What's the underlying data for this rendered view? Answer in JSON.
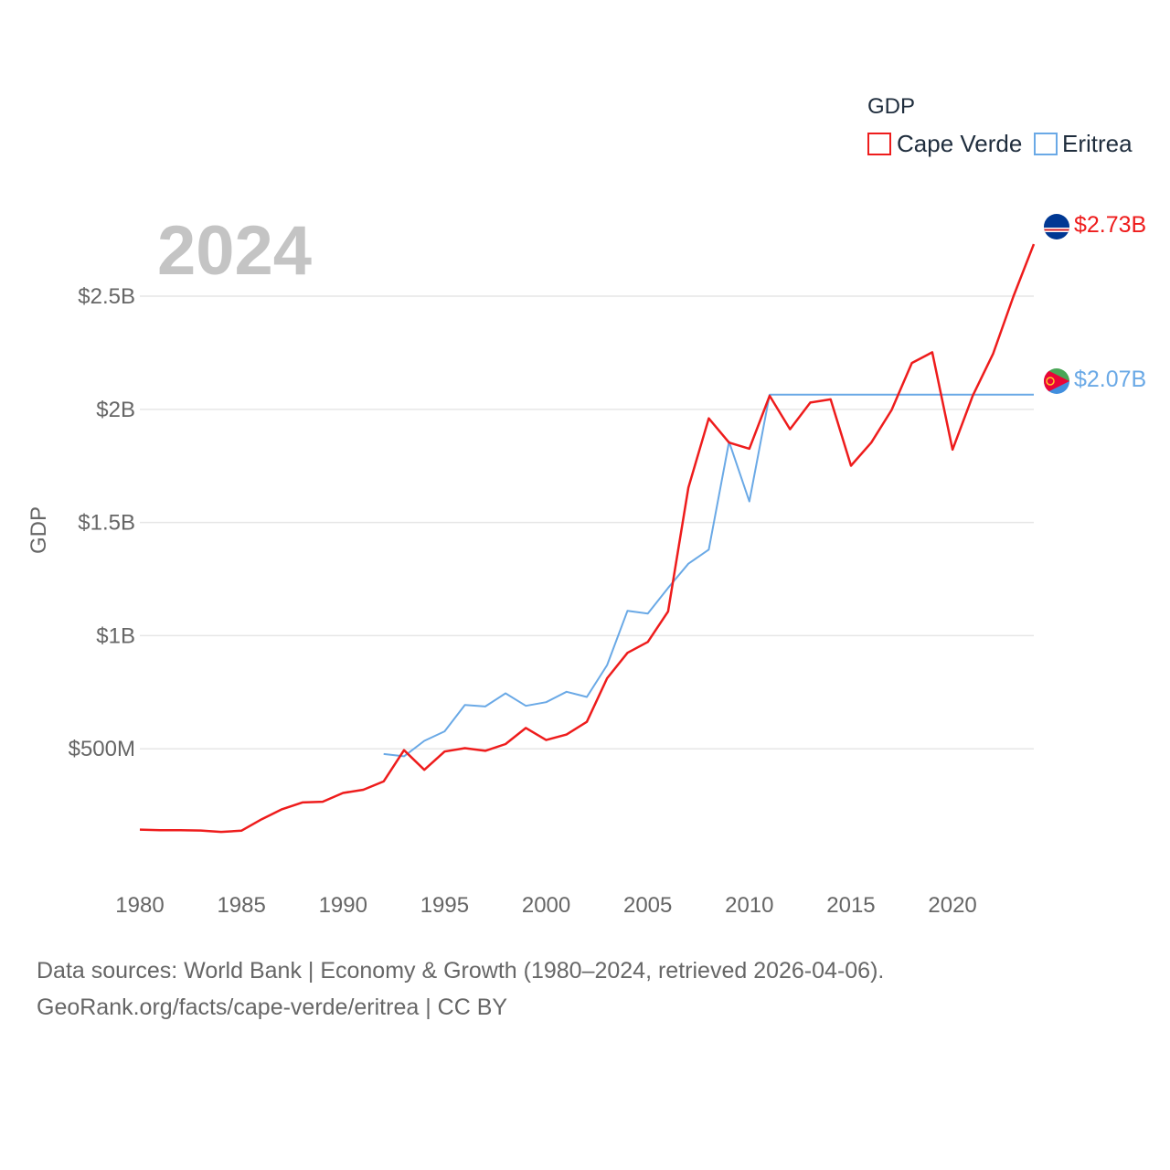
{
  "chart_data": {
    "type": "line",
    "title": "",
    "year_label": "2024",
    "xlabel": "",
    "ylabel": "GDP",
    "xlim": [
      1980,
      2024
    ],
    "ylim": [
      0,
      2900000000
    ],
    "y_ticks": [
      {
        "value": 500000000,
        "label": "$500M"
      },
      {
        "value": 1000000000,
        "label": "$1B"
      },
      {
        "value": 1500000000,
        "label": "$1.5B"
      },
      {
        "value": 2000000000,
        "label": "$2B"
      },
      {
        "value": 2500000000,
        "label": "$2.5B"
      }
    ],
    "x_ticks": [
      {
        "value": 1980,
        "label": "1980"
      },
      {
        "value": 1985,
        "label": "1985"
      },
      {
        "value": 1990,
        "label": "1990"
      },
      {
        "value": 1995,
        "label": "1995"
      },
      {
        "value": 2000,
        "label": "2000"
      },
      {
        "value": 2005,
        "label": "2005"
      },
      {
        "value": 2010,
        "label": "2010"
      },
      {
        "value": 2015,
        "label": "2015"
      },
      {
        "value": 2020,
        "label": "2020"
      }
    ],
    "grid": true,
    "legend": {
      "title": "GDP",
      "position": "top-right"
    },
    "series": [
      {
        "name": "Cape Verde",
        "color": "#ee1c1c",
        "end_label": "$2.73B",
        "x": [
          1980,
          1981,
          1982,
          1983,
          1984,
          1985,
          1986,
          1987,
          1988,
          1989,
          1990,
          1991,
          1992,
          1993,
          1994,
          1995,
          1996,
          1997,
          1998,
          1999,
          2000,
          2001,
          2002,
          2003,
          2004,
          2005,
          2006,
          2007,
          2008,
          2009,
          2010,
          2011,
          2012,
          2013,
          2014,
          2015,
          2016,
          2017,
          2018,
          2019,
          2020,
          2021,
          2022,
          2023,
          2024
        ],
        "values": [
          143000000,
          140000000,
          140000000,
          139000000,
          133000000,
          138000000,
          189000000,
          233000000,
          263000000,
          266000000,
          305000000,
          319000000,
          356000000,
          494000000,
          407000000,
          488000000,
          503000000,
          491000000,
          521000000,
          592000000,
          539000000,
          563000000,
          619000000,
          812000000,
          924000000,
          972000000,
          1107000000,
          1654000000,
          1960000000,
          1853000000,
          1826000000,
          2060000000,
          1912000000,
          2030000000,
          2044000000,
          1751000000,
          1853000000,
          1997000000,
          2205000000,
          2252000000,
          1822000000,
          2061000000,
          2246000000,
          2500000000,
          2730000000
        ]
      },
      {
        "name": "Eritrea",
        "color": "#6aa9e6",
        "end_label": "$2.07B",
        "x": [
          1992,
          1993,
          1994,
          1995,
          1996,
          1997,
          1998,
          1999,
          2000,
          2001,
          2002,
          2003,
          2004,
          2005,
          2006,
          2007,
          2008,
          2009,
          2010,
          2011,
          2024
        ],
        "values": [
          477000000,
          467000000,
          535000000,
          577000000,
          694000000,
          687000000,
          745000000,
          690000000,
          706000000,
          752000000,
          729000000,
          870000000,
          1110000000,
          1098000000,
          1211000000,
          1318000000,
          1380000000,
          1857000000,
          1593000000,
          2065000000,
          2065000000
        ]
      }
    ]
  },
  "source": {
    "line1": "Data sources: World Bank | Economy & Growth (1980–2024, retrieved 2026-04-06).",
    "line2": "GeoRank.org/facts/cape-verde/eritrea | CC BY"
  }
}
